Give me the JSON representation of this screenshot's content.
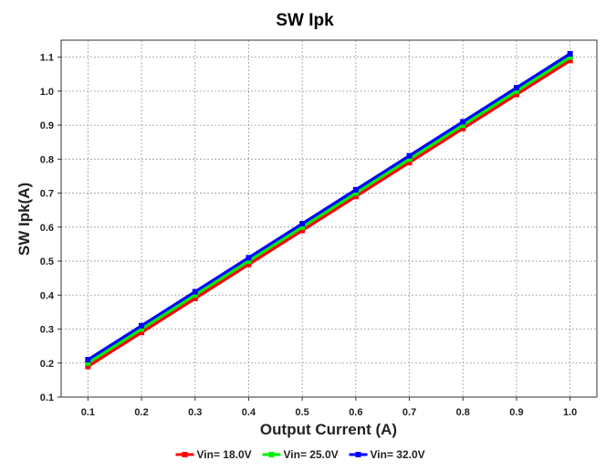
{
  "chart_data": {
    "type": "line",
    "title": "SW Ipk",
    "xlabel": "Output Current (A)",
    "ylabel": "SW Ipk(A)",
    "x": [
      0.1,
      0.2,
      0.3,
      0.4,
      0.5,
      0.6,
      0.7,
      0.8,
      0.9,
      1.0
    ],
    "xlim": [
      0.05,
      1.05
    ],
    "ylim": [
      0.1,
      1.15
    ],
    "x_ticks": [
      "0.1",
      "0.2",
      "0.3",
      "0.4",
      "0.5",
      "0.6",
      "0.7",
      "0.8",
      "0.9",
      "1.0"
    ],
    "y_ticks": [
      "0.1",
      "0.2",
      "0.3",
      "0.4",
      "0.5",
      "0.6",
      "0.7",
      "0.8",
      "0.9",
      "1.0",
      "1.1"
    ],
    "grid": true,
    "legend_position": "bottom",
    "series": [
      {
        "name": "Vin= 18.0V",
        "color": "#ff0000",
        "values": [
          0.19,
          0.29,
          0.39,
          0.49,
          0.59,
          0.69,
          0.79,
          0.89,
          0.99,
          1.09
        ]
      },
      {
        "name": "Vin= 25.0V",
        "color": "#00ee00",
        "values": [
          0.2,
          0.3,
          0.4,
          0.5,
          0.6,
          0.7,
          0.8,
          0.9,
          1.0,
          1.1
        ]
      },
      {
        "name": "Vin= 32.0V",
        "color": "#0000ff",
        "values": [
          0.21,
          0.31,
          0.41,
          0.51,
          0.61,
          0.71,
          0.81,
          0.91,
          1.01,
          1.11
        ]
      }
    ]
  }
}
